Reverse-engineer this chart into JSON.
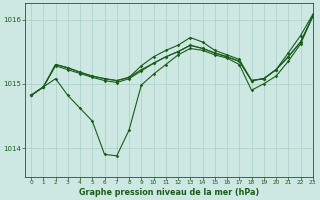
{
  "background_color": "#cde8e3",
  "plot_bg_color": "#cde8e3",
  "grid_color": "#a8cfc8",
  "line_color": "#1a5c1a",
  "title": "Graphe pression niveau de la mer (hPa)",
  "xlim": [
    -0.5,
    23
  ],
  "ylim": [
    1013.55,
    1016.25
  ],
  "yticks": [
    1014,
    1015,
    1016
  ],
  "xticks": [
    0,
    1,
    2,
    3,
    4,
    5,
    6,
    7,
    8,
    9,
    10,
    11,
    12,
    13,
    14,
    15,
    16,
    17,
    18,
    19,
    20,
    21,
    22,
    23
  ],
  "series1": [
    1014.82,
    1014.95,
    1015.3,
    1015.25,
    1015.18,
    1015.12,
    1015.08,
    1015.05,
    1015.1,
    1015.22,
    1015.32,
    1015.42,
    1015.5,
    1015.6,
    1015.55,
    1015.48,
    1015.42,
    1015.35,
    1015.05,
    1015.08,
    1015.22,
    1015.42,
    1015.65,
    1016.05
  ],
  "series2": [
    1014.82,
    1014.95,
    1015.3,
    1015.25,
    1015.18,
    1015.12,
    1015.08,
    1015.05,
    1015.1,
    1015.28,
    1015.42,
    1015.52,
    1015.6,
    1015.72,
    1015.65,
    1015.52,
    1015.45,
    1015.38,
    1015.05,
    1015.08,
    1015.22,
    1015.48,
    1015.75,
    1016.08
  ],
  "series3": [
    1014.82,
    1014.95,
    1015.28,
    1015.22,
    1015.16,
    1015.1,
    1015.05,
    1015.02,
    1015.08,
    1015.2,
    1015.32,
    1015.42,
    1015.5,
    1015.6,
    1015.55,
    1015.48,
    1015.42,
    1015.35,
    1015.05,
    1015.08,
    1015.22,
    1015.42,
    1015.65,
    1016.05
  ],
  "series_dip": [
    1014.82,
    1014.95,
    1015.08,
    1014.82,
    1014.62,
    1014.42,
    1013.9,
    1013.88,
    1014.28,
    1014.98,
    1015.15,
    1015.3,
    1015.45,
    1015.55,
    1015.52,
    1015.45,
    1015.4,
    1015.3,
    1014.9,
    1015.0,
    1015.12,
    1015.35,
    1015.62,
    1016.05
  ]
}
